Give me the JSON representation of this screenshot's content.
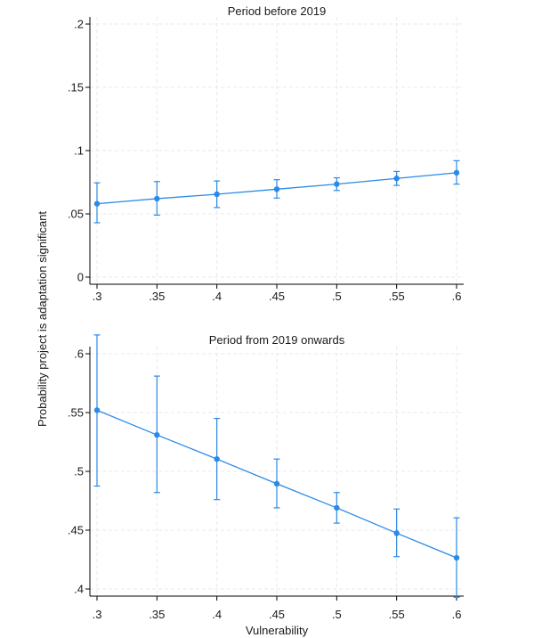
{
  "figure": {
    "ylabel": "Probability project is adaptation significant",
    "xlabel": "Vulnerability"
  },
  "chart_data": [
    {
      "type": "line",
      "title": "Period before 2019",
      "xlabel": "",
      "ylabel": "",
      "x": [
        0.3,
        0.35,
        0.4,
        0.45,
        0.5,
        0.55,
        0.6
      ],
      "xticks": [
        ".3",
        ".35",
        ".4",
        ".45",
        ".5",
        ".55",
        ".6"
      ],
      "yticks": [
        "0",
        ".05",
        ".1",
        ".15",
        ".2"
      ],
      "ylim": [
        0,
        0.2
      ],
      "xlim": [
        0.3,
        0.6
      ],
      "grid": true,
      "series": [
        {
          "values": [
            0.058,
            0.062,
            0.0655,
            0.0695,
            0.0735,
            0.078,
            0.0825
          ],
          "ci_low": [
            0.043,
            0.049,
            0.055,
            0.0625,
            0.0685,
            0.0725,
            0.0735
          ],
          "ci_high": [
            0.0745,
            0.0755,
            0.076,
            0.077,
            0.0785,
            0.0835,
            0.092
          ],
          "color": "#2a8ae8"
        }
      ]
    },
    {
      "type": "line",
      "title": "Period from 2019 onwards",
      "xlabel": "",
      "ylabel": "",
      "x": [
        0.3,
        0.35,
        0.4,
        0.45,
        0.5,
        0.55,
        0.6
      ],
      "xticks": [
        ".3",
        ".35",
        ".4",
        ".45",
        ".5",
        ".55",
        ".6"
      ],
      "yticks": [
        ".4",
        ".45",
        ".5",
        ".55",
        ".6"
      ],
      "ylim": [
        0.4,
        0.6
      ],
      "xlim": [
        0.3,
        0.6
      ],
      "grid": true,
      "series": [
        {
          "values": [
            0.552,
            0.531,
            0.5105,
            0.4895,
            0.469,
            0.4475,
            0.4265
          ],
          "ci_low": [
            0.4875,
            0.482,
            0.476,
            0.469,
            0.456,
            0.4275,
            0.393
          ],
          "ci_high": [
            0.616,
            0.581,
            0.545,
            0.5105,
            0.482,
            0.468,
            0.4605
          ],
          "color": "#2a8ae8"
        }
      ]
    }
  ]
}
